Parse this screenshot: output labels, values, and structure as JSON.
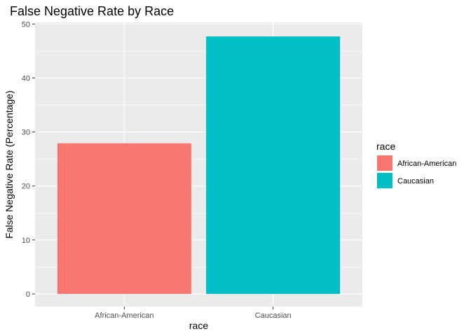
{
  "chart_data": {
    "type": "bar",
    "title": "False Negative Rate by Race",
    "xlabel": "race",
    "ylabel": "False Negative Rate (Percentage)",
    "categories": [
      "African-American",
      "Caucasian"
    ],
    "values": [
      27.9,
      47.7
    ],
    "colors": [
      "#F8766D",
      "#00BFC4"
    ],
    "ylim": [
      0,
      50
    ],
    "yticks": [
      0,
      10,
      20,
      30,
      40,
      50
    ],
    "grid": true,
    "panel_background": "#EBEBEB",
    "grid_color": "#FFFFFF",
    "legend": {
      "title": "race",
      "placement": "right",
      "entries": [
        "African-American",
        "Caucasian"
      ]
    }
  }
}
